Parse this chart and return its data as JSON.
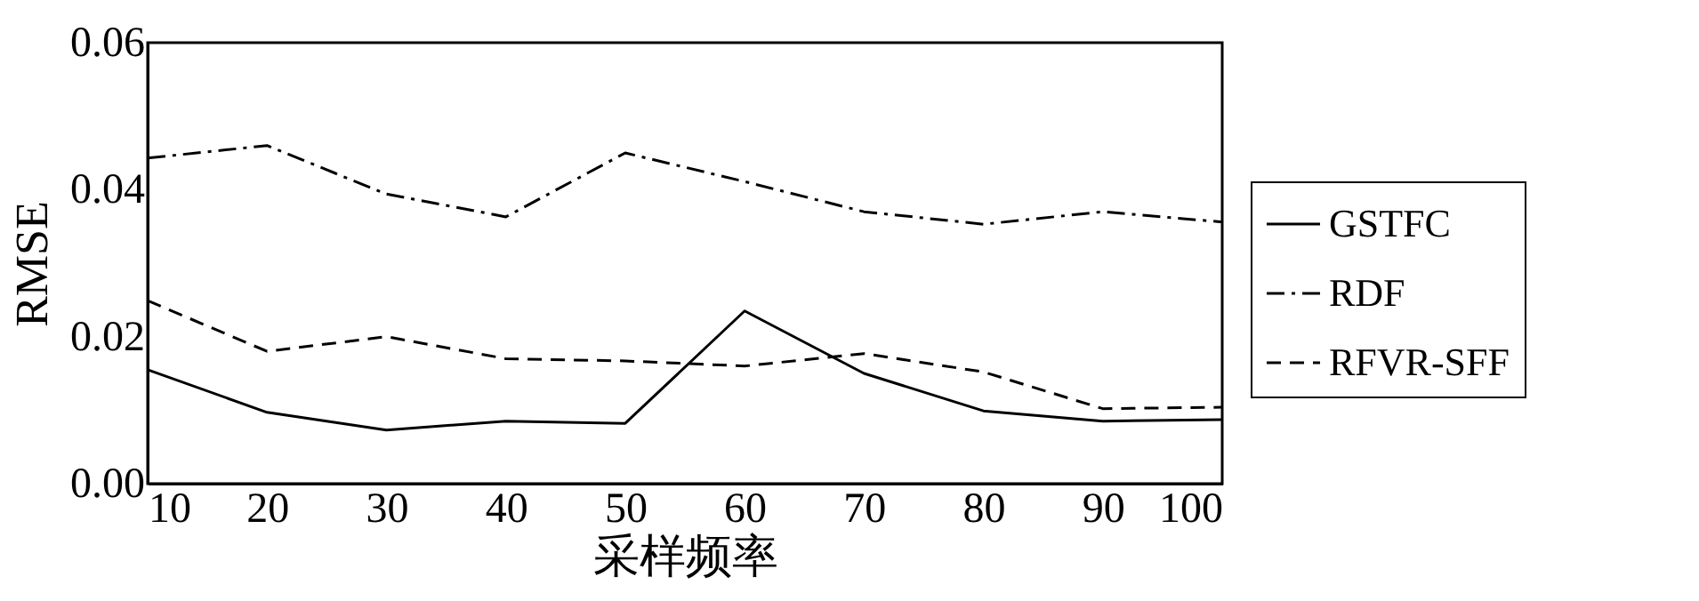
{
  "chart_data": {
    "type": "line",
    "xlabel": "采样频率",
    "ylabel": "RMSE",
    "x": [
      10,
      20,
      30,
      40,
      50,
      60,
      70,
      80,
      90,
      100
    ],
    "series": [
      {
        "name": "GSTFC",
        "color": "#000000",
        "line_style": "solid",
        "values": [
          0.0155,
          0.0097,
          0.0073,
          0.0085,
          0.0082,
          0.0235,
          0.015,
          0.0099,
          0.0085,
          0.0087
        ]
      },
      {
        "name": "RDF",
        "color": "#000000",
        "line_style": "dashdot",
        "values": [
          0.0443,
          0.046,
          0.0394,
          0.0363,
          0.045,
          0.0411,
          0.037,
          0.0353,
          0.037,
          0.0356
        ]
      },
      {
        "name": "RFVR-SFF",
        "color": "#000000",
        "line_style": "dashed",
        "values": [
          0.0249,
          0.018,
          0.02,
          0.017,
          0.0167,
          0.016,
          0.0177,
          0.0152,
          0.0102,
          0.0104
        ]
      }
    ],
    "xlim": [
      10,
      100
    ],
    "ylim": [
      0,
      0.06
    ],
    "xticks": [
      10,
      20,
      30,
      40,
      50,
      60,
      70,
      80,
      90,
      100
    ],
    "yticks": [
      {
        "value": 0,
        "label": "0.00"
      },
      {
        "value": 0.02,
        "label": "0.02"
      },
      {
        "value": 0.04,
        "label": "0.04"
      },
      {
        "value": 0.06,
        "label": "0.06"
      }
    ],
    "grid": false,
    "legend": "right",
    "marker": "none"
  }
}
